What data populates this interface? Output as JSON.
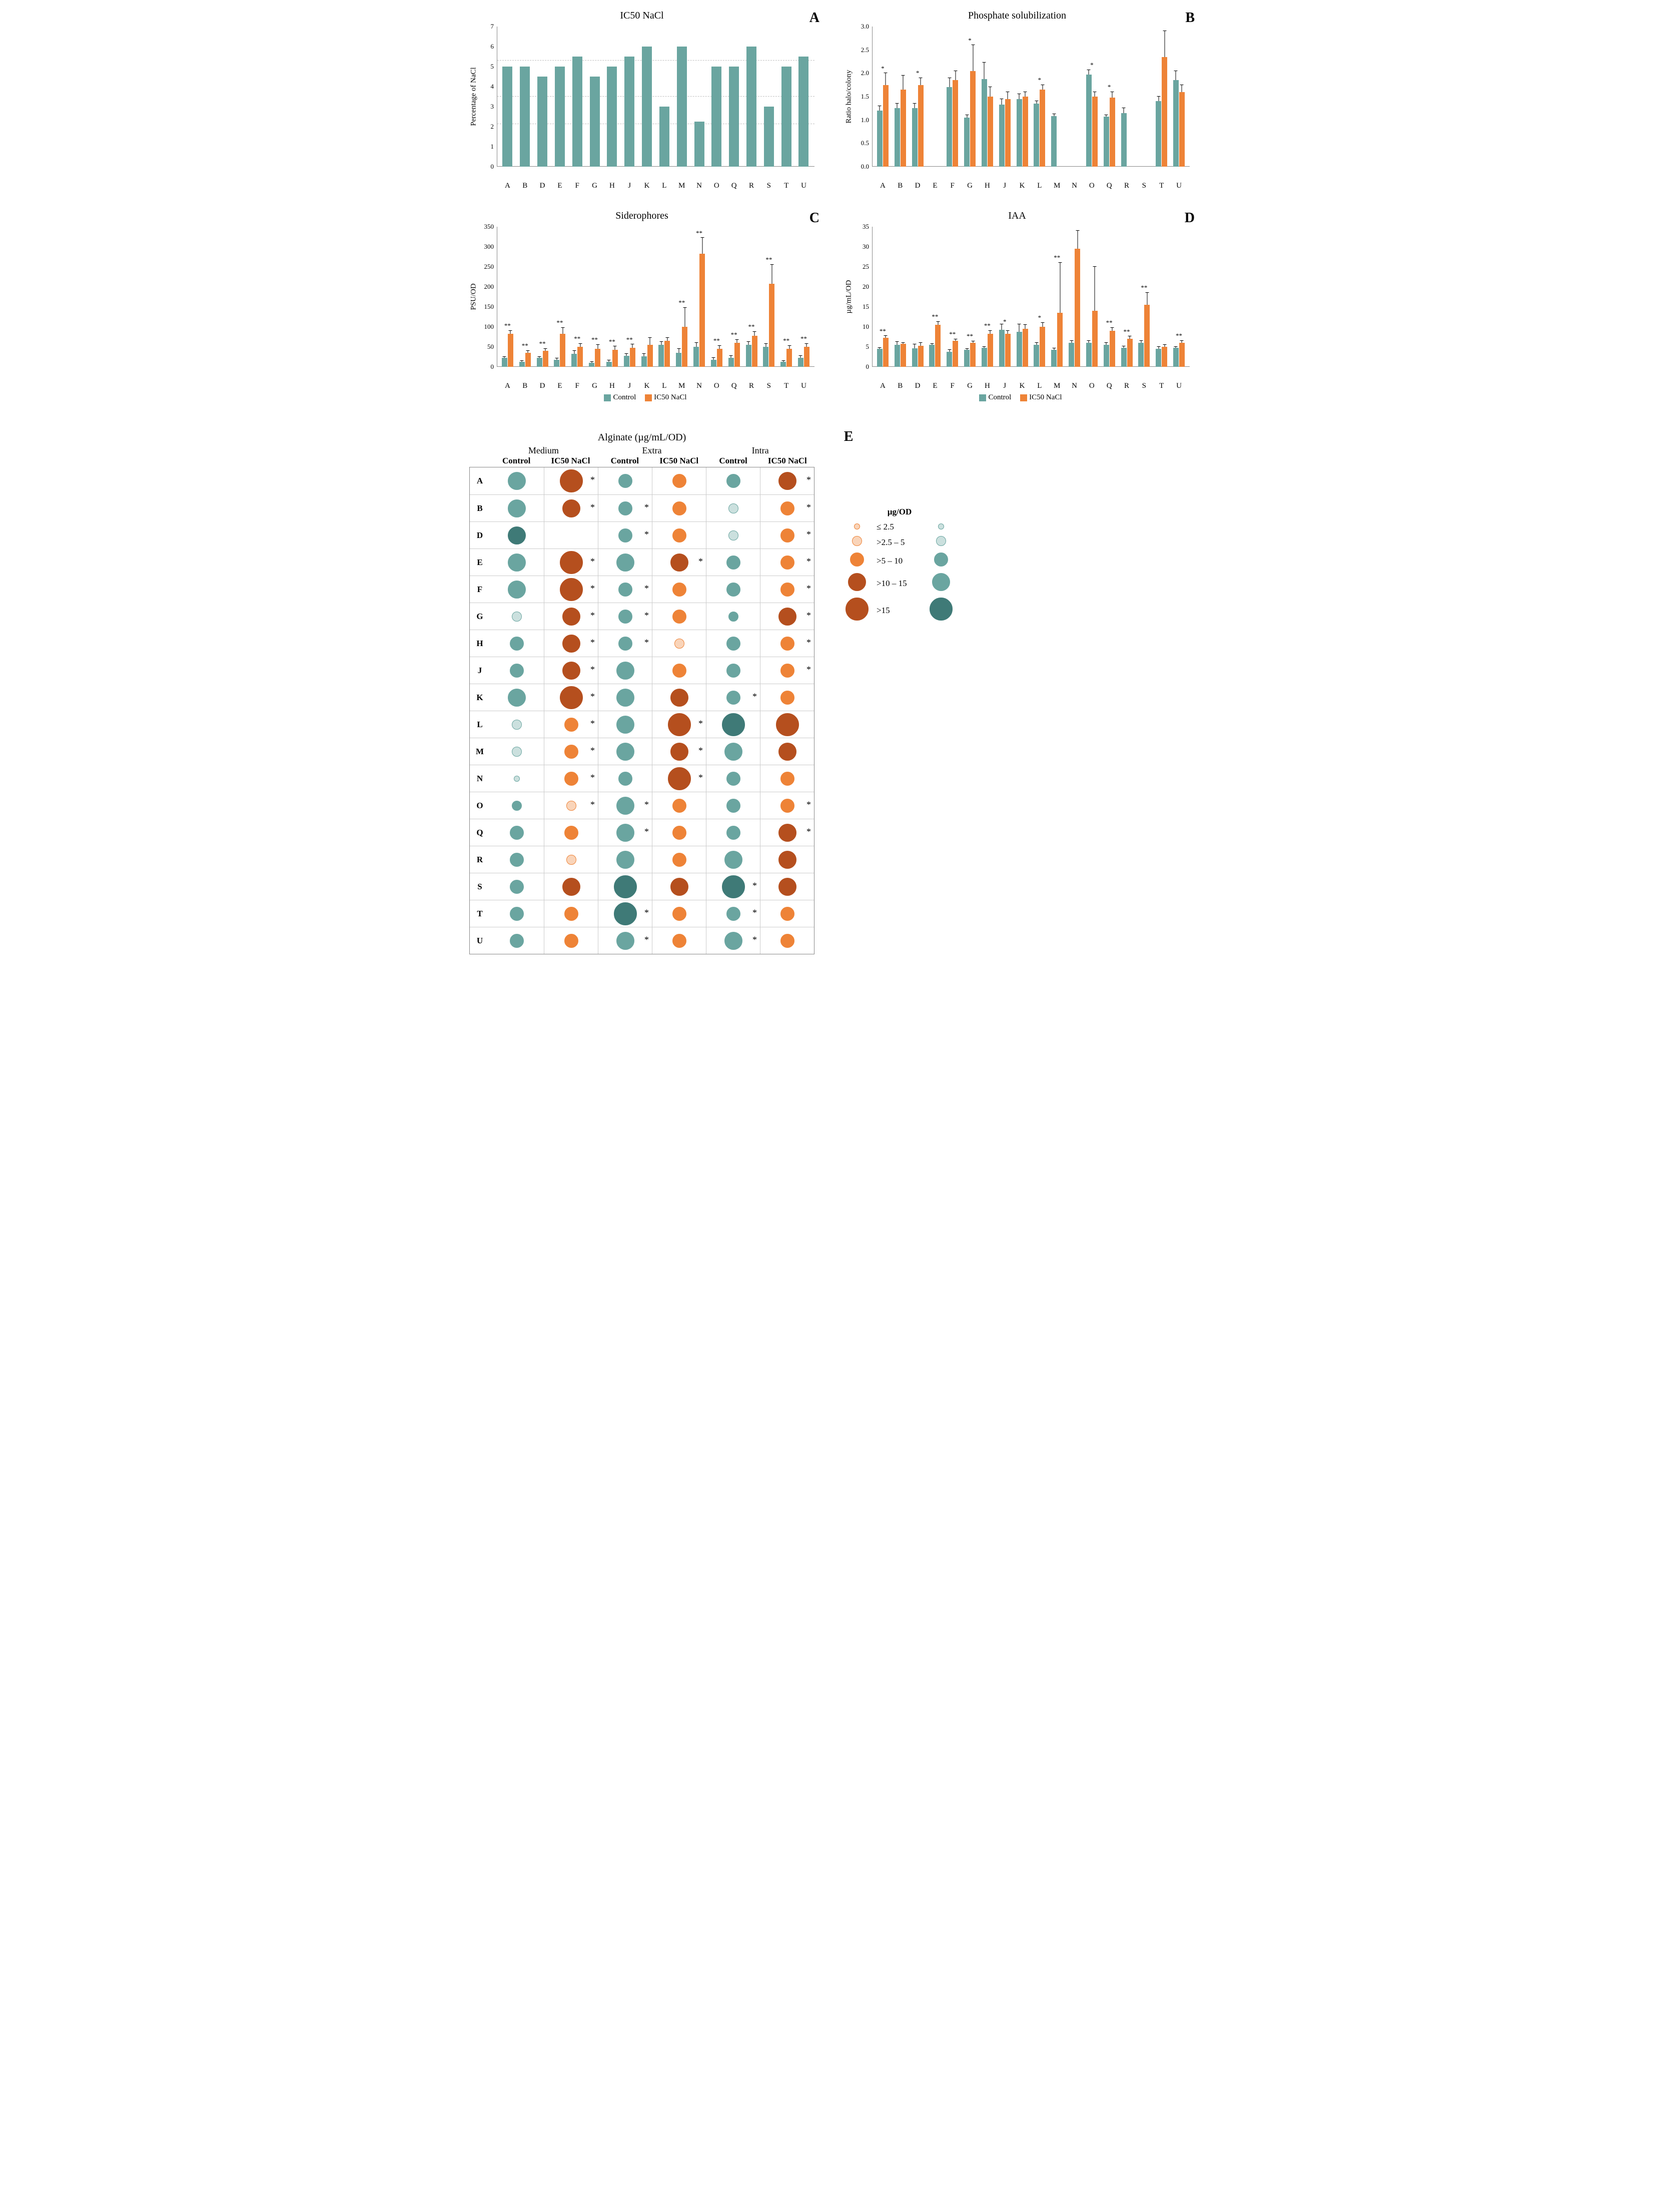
{
  "colors": {
    "teal": "#6aa5a0",
    "teal_dark": "#3f7a77",
    "orange": "#ee8337",
    "orange_dark": "#b54f1e",
    "brown_dark": "#803316",
    "grid": "#bfbfbf",
    "axis": "#888888"
  },
  "strains": [
    "A",
    "B",
    "D",
    "E",
    "F",
    "G",
    "H",
    "J",
    "K",
    "L",
    "M",
    "N",
    "O",
    "Q",
    "R",
    "S",
    "T",
    "U"
  ],
  "panelA": {
    "letter": "A",
    "title": "IC50 NaCl",
    "ylabel": "Percentage of NaCl",
    "ymin": 0,
    "ymax": 7,
    "ystep": 1,
    "gridlines": [
      5.3,
      3.5,
      2.1
    ],
    "values": {
      "A": 5.0,
      "B": 5.0,
      "D": 4.5,
      "E": 5.0,
      "F": 5.5,
      "G": 4.5,
      "H": 5.0,
      "J": 5.5,
      "K": 6.0,
      "L": 3.0,
      "M": 6.0,
      "N": 2.25,
      "O": 5.0,
      "Q": 5.0,
      "R": 6.0,
      "S": 3.0,
      "T": 5.0,
      "U": 5.5
    }
  },
  "panelB": {
    "letter": "B",
    "title": "Phosphate solubilization",
    "ylabel": "Ratio halo/colony",
    "ymin": 0,
    "ymax": 3.0,
    "ystep": 0.5,
    "data": {
      "A": {
        "c": 1.2,
        "t": 1.75,
        "ec": 0.1,
        "et": 0.25,
        "sig": "*"
      },
      "B": {
        "c": 1.25,
        "t": 1.65,
        "ec": 0.1,
        "et": 0.3
      },
      "D": {
        "c": 1.25,
        "t": 1.75,
        "ec": 0.1,
        "et": 0.15,
        "sig": "*"
      },
      "E": {
        "c": 0,
        "t": 0
      },
      "F": {
        "c": 1.7,
        "t": 1.85,
        "ec": 0.2,
        "et": 0.2
      },
      "G": {
        "c": 1.05,
        "t": 2.05,
        "ec": 0.05,
        "et": 0.55,
        "sig": "*"
      },
      "H": {
        "c": 1.88,
        "t": 1.5,
        "ec": 0.35,
        "et": 0.2
      },
      "J": {
        "c": 1.33,
        "t": 1.45,
        "ec": 0.12,
        "et": 0.15
      },
      "K": {
        "c": 1.45,
        "t": 1.5,
        "ec": 0.1,
        "et": 0.1
      },
      "L": {
        "c": 1.35,
        "t": 1.65,
        "ec": 0.05,
        "et": 0.1,
        "sig": "*"
      },
      "M": {
        "c": 1.08,
        "t": 0,
        "ec": 0.05
      },
      "N": {
        "c": 0,
        "t": 0
      },
      "O": {
        "c": 1.97,
        "t": 1.5,
        "ec": 0.1,
        "et": 0.1,
        "sig": "*"
      },
      "Q": {
        "c": 1.07,
        "t": 1.48,
        "ec": 0.03,
        "et": 0.12,
        "sig": "*"
      },
      "R": {
        "c": 1.15,
        "t": 0,
        "ec": 0.1
      },
      "S": {
        "c": 0,
        "t": 0
      },
      "T": {
        "c": 1.4,
        "t": 2.35,
        "ec": 0.1,
        "et": 0.55
      },
      "U": {
        "c": 1.85,
        "t": 1.6,
        "ec": 0.2,
        "et": 0.15
      }
    }
  },
  "panelC": {
    "letter": "C",
    "title": "Siderophores",
    "ylabel": "PSU/OD",
    "ymin": 0,
    "ymax": 350,
    "ystep": 50,
    "data": {
      "A": {
        "c": 22,
        "t": 82,
        "ec": 3,
        "et": 8,
        "sig": "**"
      },
      "B": {
        "c": 12,
        "t": 35,
        "ec": 3,
        "et": 5,
        "sig": "**"
      },
      "D": {
        "c": 22,
        "t": 40,
        "ec": 3,
        "et": 5,
        "sig": "**"
      },
      "E": {
        "c": 18,
        "t": 83,
        "ec": 3,
        "et": 15,
        "sig": "**"
      },
      "F": {
        "c": 32,
        "t": 50,
        "ec": 8,
        "et": 8,
        "sig": "**"
      },
      "G": {
        "c": 10,
        "t": 45,
        "ec": 3,
        "et": 10,
        "sig": "**"
      },
      "H": {
        "c": 12,
        "t": 43,
        "ec": 4,
        "et": 8,
        "sig": "**"
      },
      "J": {
        "c": 27,
        "t": 48,
        "ec": 5,
        "et": 8,
        "sig": "**"
      },
      "K": {
        "c": 26,
        "t": 55,
        "ec": 6,
        "et": 18
      },
      "L": {
        "c": 55,
        "t": 65,
        "ec": 8,
        "et": 8
      },
      "M": {
        "c": 35,
        "t": 100,
        "ec": 10,
        "et": 48,
        "sig": "**"
      },
      "N": {
        "c": 50,
        "t": 282,
        "ec": 10,
        "et": 40,
        "sig": "**"
      },
      "O": {
        "c": 18,
        "t": 45,
        "ec": 4,
        "et": 8,
        "sig": "**"
      },
      "Q": {
        "c": 22,
        "t": 60,
        "ec": 5,
        "et": 8,
        "sig": "**"
      },
      "R": {
        "c": 55,
        "t": 78,
        "ec": 8,
        "et": 10,
        "sig": "**"
      },
      "S": {
        "c": 50,
        "t": 207,
        "ec": 8,
        "et": 48,
        "sig": "**"
      },
      "T": {
        "c": 12,
        "t": 45,
        "ec": 3,
        "et": 8,
        "sig": "**"
      },
      "U": {
        "c": 22,
        "t": 50,
        "ec": 5,
        "et": 8,
        "sig": "**"
      }
    },
    "legend": {
      "control": "Control",
      "treat": "IC50 NaCl"
    }
  },
  "panelD": {
    "letter": "D",
    "title": "IAA",
    "ylabel": "µg/mL/OD",
    "ymin": 0,
    "ymax": 35,
    "ystep": 5,
    "data": {
      "A": {
        "c": 4.5,
        "t": 7.2,
        "ec": 0.3,
        "et": 0.5,
        "sig": "**"
      },
      "B": {
        "c": 5.5,
        "t": 5.7,
        "ec": 0.8,
        "et": 0.3
      },
      "D": {
        "c": 4.6,
        "t": 5.2,
        "ec": 1.0,
        "et": 0.8
      },
      "E": {
        "c": 5.5,
        "t": 10.5,
        "ec": 0.3,
        "et": 0.8,
        "sig": "**"
      },
      "F": {
        "c": 3.8,
        "t": 6.5,
        "ec": 0.4,
        "et": 0.4,
        "sig": "**"
      },
      "G": {
        "c": 4.2,
        "t": 6.0,
        "ec": 0.3,
        "et": 0.4,
        "sig": "**"
      },
      "H": {
        "c": 4.7,
        "t": 8.2,
        "ec": 0.3,
        "et": 0.8,
        "sig": "**"
      },
      "J": {
        "c": 9.3,
        "t": 8.2,
        "ec": 1.3,
        "et": 0.8,
        "sig": "*"
      },
      "K": {
        "c": 8.8,
        "t": 9.5,
        "ec": 1.8,
        "et": 1.0
      },
      "L": {
        "c": 5.5,
        "t": 10.0,
        "ec": 0.5,
        "et": 1.0,
        "sig": "*"
      },
      "M": {
        "c": 4.2,
        "t": 13.5,
        "ec": 0.4,
        "et": 12.5,
        "sig": "**"
      },
      "N": {
        "c": 6.0,
        "t": 29.5,
        "ec": 0.5,
        "et": 4.5
      },
      "O": {
        "c": 6.0,
        "t": 14.0,
        "ec": 0.5,
        "et": 11.0
      },
      "Q": {
        "c": 5.5,
        "t": 9.0,
        "ec": 0.5,
        "et": 0.8,
        "sig": "**"
      },
      "R": {
        "c": 4.7,
        "t": 7.0,
        "ec": 0.4,
        "et": 0.6,
        "sig": "**"
      },
      "S": {
        "c": 6.0,
        "t": 15.5,
        "ec": 0.5,
        "et": 3.0,
        "sig": "**"
      },
      "T": {
        "c": 4.5,
        "t": 5.0,
        "ec": 0.5,
        "et": 0.5
      },
      "U": {
        "c": 4.7,
        "t": 6.0,
        "ec": 0.3,
        "et": 0.5,
        "sig": "**"
      }
    },
    "legend": {
      "control": "Control",
      "treat": "IC50 NaCl"
    }
  },
  "panelE": {
    "letter": "E",
    "title": "Alginate (µg/mL/OD)",
    "sections": [
      "Medium",
      "Extra",
      "Intra"
    ],
    "cond_labels": [
      "Control",
      "IC50 NaCl",
      "Control",
      "IC50 NaCl",
      "Control",
      "IC50 NaCl"
    ],
    "size_scale": {
      "1": 12,
      "2": 20,
      "3": 28,
      "4": 36,
      "5": 46
    },
    "legend_title": "µg/OD",
    "legend_items": [
      {
        "label": "≤ 2.5",
        "size": 1
      },
      {
        "label": ">2.5 – 5",
        "size": 2
      },
      {
        "label": ">5 – 10",
        "size": 3
      },
      {
        "label": ">10 – 15",
        "size": 4
      },
      {
        "label": ">15",
        "size": 5
      }
    ],
    "rows": {
      "A": [
        {
          "c": "teal",
          "s": 4
        },
        {
          "c": "brown",
          "s": 5,
          "star": 1
        },
        {
          "c": "teal",
          "s": 3
        },
        {
          "c": "orange",
          "s": 3
        },
        {
          "c": "teal",
          "s": 3
        },
        {
          "c": "brown",
          "s": 4,
          "star": 1
        }
      ],
      "B": [
        {
          "c": "teal",
          "s": 4
        },
        {
          "c": "brown",
          "s": 4,
          "star": 1
        },
        {
          "c": "teal",
          "s": 3,
          "star": 1
        },
        {
          "c": "orange",
          "s": 3
        },
        {
          "c": "tealo",
          "s": 2
        },
        {
          "c": "orange",
          "s": 3,
          "star": 1
        }
      ],
      "D": [
        {
          "c": "teald",
          "s": 4
        },
        {
          "c": "none",
          "s": 0
        },
        {
          "c": "teal",
          "s": 3,
          "star": 1
        },
        {
          "c": "orange",
          "s": 3
        },
        {
          "c": "tealo",
          "s": 2
        },
        {
          "c": "orange",
          "s": 3,
          "star": 1
        }
      ],
      "E": [
        {
          "c": "teal",
          "s": 4
        },
        {
          "c": "brown",
          "s": 5,
          "star": 1
        },
        {
          "c": "teal",
          "s": 4
        },
        {
          "c": "brown",
          "s": 4,
          "star": 1
        },
        {
          "c": "teal",
          "s": 3
        },
        {
          "c": "orange",
          "s": 3,
          "star": 1
        }
      ],
      "F": [
        {
          "c": "teal",
          "s": 4
        },
        {
          "c": "brown",
          "s": 5,
          "star": 1
        },
        {
          "c": "teal",
          "s": 3,
          "star": 1
        },
        {
          "c": "orange",
          "s": 3
        },
        {
          "c": "teal",
          "s": 3
        },
        {
          "c": "orange",
          "s": 3,
          "star": 1
        }
      ],
      "G": [
        {
          "c": "tealo",
          "s": 2
        },
        {
          "c": "brown",
          "s": 4,
          "star": 1
        },
        {
          "c": "teal",
          "s": 3,
          "star": 1
        },
        {
          "c": "orange",
          "s": 3
        },
        {
          "c": "teal",
          "s": 2
        },
        {
          "c": "brown",
          "s": 4,
          "star": 1
        }
      ],
      "H": [
        {
          "c": "teal",
          "s": 3
        },
        {
          "c": "brown",
          "s": 4,
          "star": 1
        },
        {
          "c": "teal",
          "s": 3,
          "star": 1
        },
        {
          "c": "orangeo",
          "s": 2
        },
        {
          "c": "teal",
          "s": 3
        },
        {
          "c": "orange",
          "s": 3,
          "star": 1
        }
      ],
      "J": [
        {
          "c": "teal",
          "s": 3
        },
        {
          "c": "brown",
          "s": 4,
          "star": 1
        },
        {
          "c": "teal",
          "s": 4
        },
        {
          "c": "orange",
          "s": 3
        },
        {
          "c": "teal",
          "s": 3
        },
        {
          "c": "orange",
          "s": 3,
          "star": 1
        }
      ],
      "K": [
        {
          "c": "teal",
          "s": 4
        },
        {
          "c": "brown",
          "s": 5,
          "star": 1
        },
        {
          "c": "teal",
          "s": 4
        },
        {
          "c": "brown",
          "s": 4
        },
        {
          "c": "teal",
          "s": 3,
          "star": 1
        },
        {
          "c": "orange",
          "s": 3
        }
      ],
      "L": [
        {
          "c": "tealo",
          "s": 2
        },
        {
          "c": "orange",
          "s": 3,
          "star": 1
        },
        {
          "c": "teal",
          "s": 4
        },
        {
          "c": "brown",
          "s": 5,
          "star": 1
        },
        {
          "c": "teald",
          "s": 5
        },
        {
          "c": "brown",
          "s": 5
        }
      ],
      "M": [
        {
          "c": "tealo",
          "s": 2
        },
        {
          "c": "orange",
          "s": 3,
          "star": 1
        },
        {
          "c": "teal",
          "s": 4
        },
        {
          "c": "brown",
          "s": 4,
          "star": 1
        },
        {
          "c": "teal",
          "s": 4
        },
        {
          "c": "brown",
          "s": 4
        }
      ],
      "N": [
        {
          "c": "tealo",
          "s": 1
        },
        {
          "c": "orange",
          "s": 3,
          "star": 1
        },
        {
          "c": "teal",
          "s": 3
        },
        {
          "c": "brown",
          "s": 5,
          "star": 1
        },
        {
          "c": "teal",
          "s": 3
        },
        {
          "c": "orange",
          "s": 3
        }
      ],
      "O": [
        {
          "c": "teal",
          "s": 2
        },
        {
          "c": "orangeo",
          "s": 2,
          "star": 1
        },
        {
          "c": "teal",
          "s": 4,
          "star": 1
        },
        {
          "c": "orange",
          "s": 3
        },
        {
          "c": "teal",
          "s": 3
        },
        {
          "c": "orange",
          "s": 3,
          "star": 1
        }
      ],
      "Q": [
        {
          "c": "teal",
          "s": 3
        },
        {
          "c": "orange",
          "s": 3
        },
        {
          "c": "teal",
          "s": 4,
          "star": 1
        },
        {
          "c": "orange",
          "s": 3
        },
        {
          "c": "teal",
          "s": 3
        },
        {
          "c": "brown",
          "s": 4,
          "star": 1
        }
      ],
      "R": [
        {
          "c": "teal",
          "s": 3
        },
        {
          "c": "orangeo",
          "s": 2
        },
        {
          "c": "teal",
          "s": 4
        },
        {
          "c": "orange",
          "s": 3
        },
        {
          "c": "teal",
          "s": 4
        },
        {
          "c": "brown",
          "s": 4
        }
      ],
      "S": [
        {
          "c": "teal",
          "s": 3
        },
        {
          "c": "brown",
          "s": 4
        },
        {
          "c": "teald",
          "s": 5
        },
        {
          "c": "brown",
          "s": 4
        },
        {
          "c": "teald",
          "s": 5,
          "star": 1
        },
        {
          "c": "brown",
          "s": 4
        }
      ],
      "T": [
        {
          "c": "teal",
          "s": 3
        },
        {
          "c": "orange",
          "s": 3
        },
        {
          "c": "teald",
          "s": 5,
          "star": 1
        },
        {
          "c": "orange",
          "s": 3
        },
        {
          "c": "teal",
          "s": 3,
          "star": 1
        },
        {
          "c": "orange",
          "s": 3
        }
      ],
      "U": [
        {
          "c": "teal",
          "s": 3
        },
        {
          "c": "orange",
          "s": 3
        },
        {
          "c": "teal",
          "s": 4,
          "star": 1
        },
        {
          "c": "orange",
          "s": 3
        },
        {
          "c": "teal",
          "s": 4,
          "star": 1
        },
        {
          "c": "orange",
          "s": 3
        }
      ]
    }
  }
}
